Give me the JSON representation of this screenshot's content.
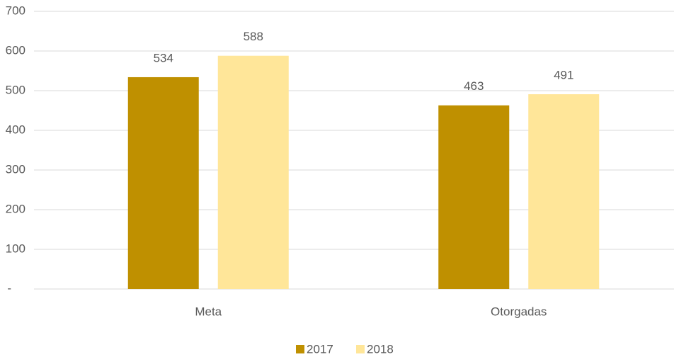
{
  "chart_data": {
    "type": "bar",
    "categories": [
      "Meta",
      "Otorgadas"
    ],
    "series": [
      {
        "name": "2017",
        "color": "#bf9000",
        "values": [
          534,
          463
        ]
      },
      {
        "name": "2018",
        "color": "#ffe699",
        "values": [
          588,
          491
        ]
      }
    ],
    "ylim": [
      0,
      700
    ],
    "yticks": [
      {
        "value": 0,
        "label": "-"
      },
      100,
      200,
      300,
      400,
      500,
      600,
      700
    ],
    "grid": true,
    "legend": "bottom"
  }
}
